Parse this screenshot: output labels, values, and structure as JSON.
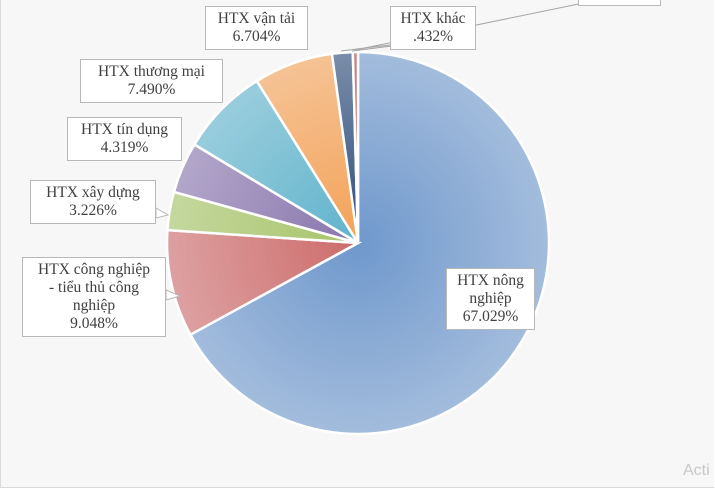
{
  "chart_data": {
    "type": "pie",
    "title": "",
    "slices": [
      {
        "name": "HTX nông nghiệp",
        "label_lines": [
          "HTX nông",
          "nghiệp"
        ],
        "value": 67.029,
        "value_label": "67.029%",
        "color": "#6f98cc"
      },
      {
        "name": "HTX công nghiệp - tiểu thủ công nghiệp",
        "label_lines": [
          "HTX công nghiệp",
          "- tiểu thủ công",
          "nghiệp"
        ],
        "value": 9.048,
        "value_label": "9.048%",
        "color": "#cd6b6b"
      },
      {
        "name": "HTX xây dựng",
        "label_lines": [
          "HTX xây dựng"
        ],
        "value": 3.226,
        "value_label": "3.226%",
        "color": "#a6c468"
      },
      {
        "name": "HTX tín dụng",
        "label_lines": [
          "HTX tín dụng"
        ],
        "value": 4.319,
        "value_label": "4.319%",
        "color": "#8875ad"
      },
      {
        "name": "HTX thương mại",
        "label_lines": [
          "HTX thương mại"
        ],
        "value": 7.49,
        "value_label": "7.490%",
        "color": "#5fb3cc"
      },
      {
        "name": "HTX vận tải",
        "label_lines": [
          "HTX vận tải"
        ],
        "value": 6.704,
        "value_label": "6.704%",
        "color": "#f4a258"
      },
      {
        "name": "",
        "label_lines": [],
        "value": 1.75,
        "value_label": "",
        "color": "#2e4d7b"
      },
      {
        "name": "HTX khác",
        "label_lines": [
          "HTX khác"
        ],
        "value": 0.432,
        "value_label": ".432%",
        "color": "#b04545"
      }
    ]
  },
  "watermark_text": "Acti"
}
